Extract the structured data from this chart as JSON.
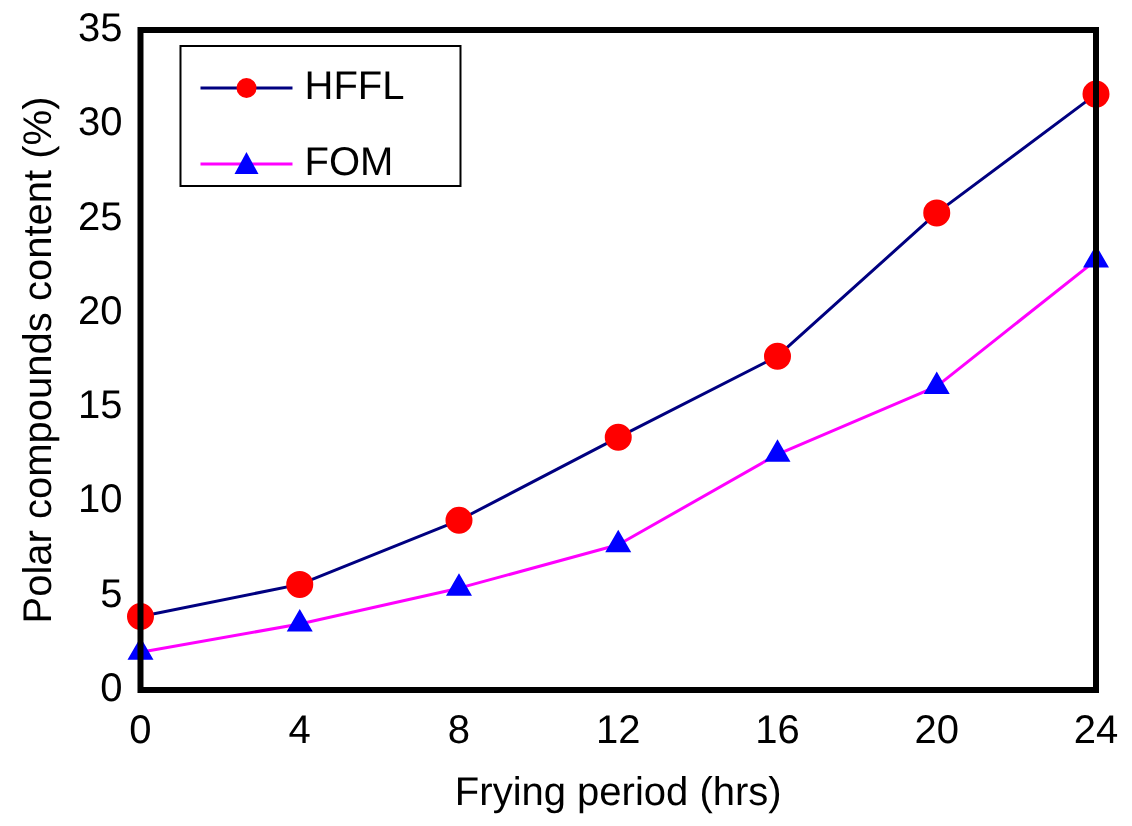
{
  "chart_data": {
    "type": "line",
    "xlabel": "Frying period (hrs)",
    "ylabel": "Polar compounds content (%)",
    "x": [
      0,
      4,
      8,
      12,
      16,
      20,
      24
    ],
    "xlim": [
      0,
      24
    ],
    "xticks": [
      0,
      4,
      8,
      12,
      16,
      20,
      24
    ],
    "ylim": [
      0,
      35
    ],
    "yticks": [
      0,
      5,
      10,
      15,
      20,
      25,
      30,
      35
    ],
    "grid": false,
    "legend": "top left",
    "line_style": "solid",
    "series": [
      {
        "name": "HFFL",
        "color": "#000080",
        "marker": "circle",
        "colors": [
          "#ff0000",
          "#ff0000",
          "#ff0000",
          "#ff0000",
          "#ff0000",
          "#ff0000",
          "#ff0000"
        ],
        "values": [
          3.9,
          5.6,
          9.0,
          13.4,
          17.7,
          25.3,
          31.6
        ]
      },
      {
        "name": "FOM",
        "color": "#ff00ff",
        "marker": "triangle",
        "colors": [
          "#0000ff",
          "#0000ff",
          "#0000ff",
          "#0000ff",
          "#0000ff",
          "#0000ff",
          "#0000ff"
        ],
        "values": [
          2.0,
          3.5,
          5.4,
          7.7,
          12.5,
          16.1,
          22.8
        ]
      }
    ]
  }
}
